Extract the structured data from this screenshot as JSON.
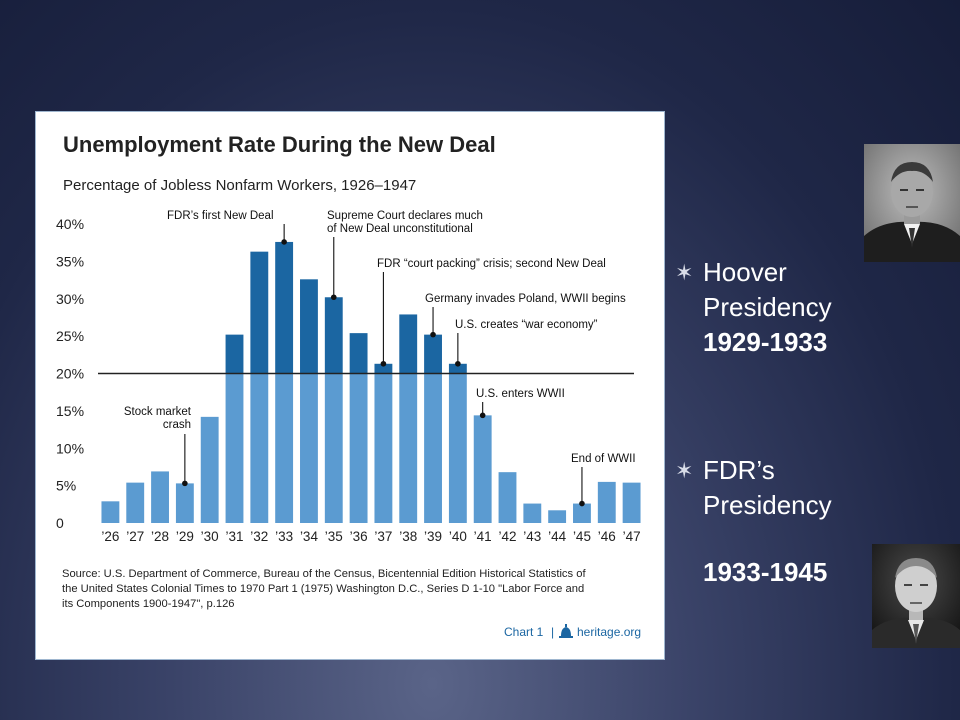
{
  "slide": {
    "bullets": [
      {
        "line1": "Hoover",
        "line2": "Presidency",
        "years": "1929-1933",
        "marker": "✶"
      },
      {
        "line1": "FDR’s",
        "line2": "Presidency",
        "years": "1933-1945",
        "marker": "✶"
      }
    ],
    "portraits": [
      {
        "subject": "Herbert Hoover portrait"
      },
      {
        "subject": "Franklin D. Roosevelt portrait"
      }
    ]
  },
  "chart_data": {
    "type": "bar",
    "title": "Unemployment Rate During the New Deal",
    "subtitle": "Percentage of Jobless Nonfarm Workers, 1926–1947",
    "categories": [
      "’26",
      "’27",
      "’28",
      "’29",
      "’30",
      "’31",
      "’32",
      "’33",
      "’34",
      "’35",
      "’36",
      "’37",
      "’38",
      "’39",
      "’40",
      "’41",
      "’42",
      "’43",
      "’44",
      "’45",
      "’46",
      "’47"
    ],
    "values": [
      2.9,
      5.4,
      6.9,
      5.3,
      14.2,
      25.2,
      36.3,
      37.6,
      32.6,
      30.2,
      25.4,
      21.3,
      27.9,
      25.2,
      21.3,
      14.4,
      6.8,
      2.6,
      1.7,
      2.6,
      5.5,
      5.4
    ],
    "dark_categories": [
      "’31",
      "’32",
      "’33",
      "’34",
      "’35",
      "’36",
      "’37",
      "’38",
      "’39",
      "’40"
    ],
    "yticks": [
      0,
      5,
      10,
      15,
      20,
      25,
      30,
      35,
      40
    ],
    "ytick_labels": [
      "0",
      "5%",
      "10%",
      "15%",
      "20%",
      "25%",
      "30%",
      "35%",
      "40%"
    ],
    "ylim": [
      0,
      40
    ],
    "reference_line": 20,
    "colors": {
      "light_bar": "#5b9bd1",
      "dark_bar": "#1b66a2",
      "line": "#222222",
      "text": "#222222"
    },
    "annotations": [
      {
        "text": [
          "FDR’s first New Deal"
        ],
        "category": "’33",
        "value": 37.6
      },
      {
        "text": [
          "Supreme Court declares much",
          "of New Deal unconstitutional"
        ],
        "category": "’35",
        "value": 30.2
      },
      {
        "text": [
          "FDR “court packing” crisis; second New Deal"
        ],
        "category": "’37",
        "value": 21.3
      },
      {
        "text": [
          "Germany invades Poland, WWII begins"
        ],
        "category": "’39",
        "value": 25.2
      },
      {
        "text": [
          "U.S. creates “war economy”"
        ],
        "category": "’40",
        "value": 21.3
      },
      {
        "text": [
          "U.S. enters WWII"
        ],
        "category": "’41",
        "value": 14.4
      },
      {
        "text": [
          "End of WWII"
        ],
        "category": "’45",
        "value": 2.6
      },
      {
        "text": [
          "Stock market",
          "crash"
        ],
        "category": "’29",
        "value": 5.3
      }
    ],
    "source": [
      "Source: U.S. Department of Commerce, Bureau of the Census, Bicentennial Edition Historical Statistics of",
      "the United States Colonial Times to 1970 Part 1 (1975) Washington D.C., Series D 1-10 \"Labor Force and",
      "its Components 1900-1947\", p.126"
    ],
    "footer_chart_label": "Chart 1",
    "footer_site": "heritage.org"
  }
}
